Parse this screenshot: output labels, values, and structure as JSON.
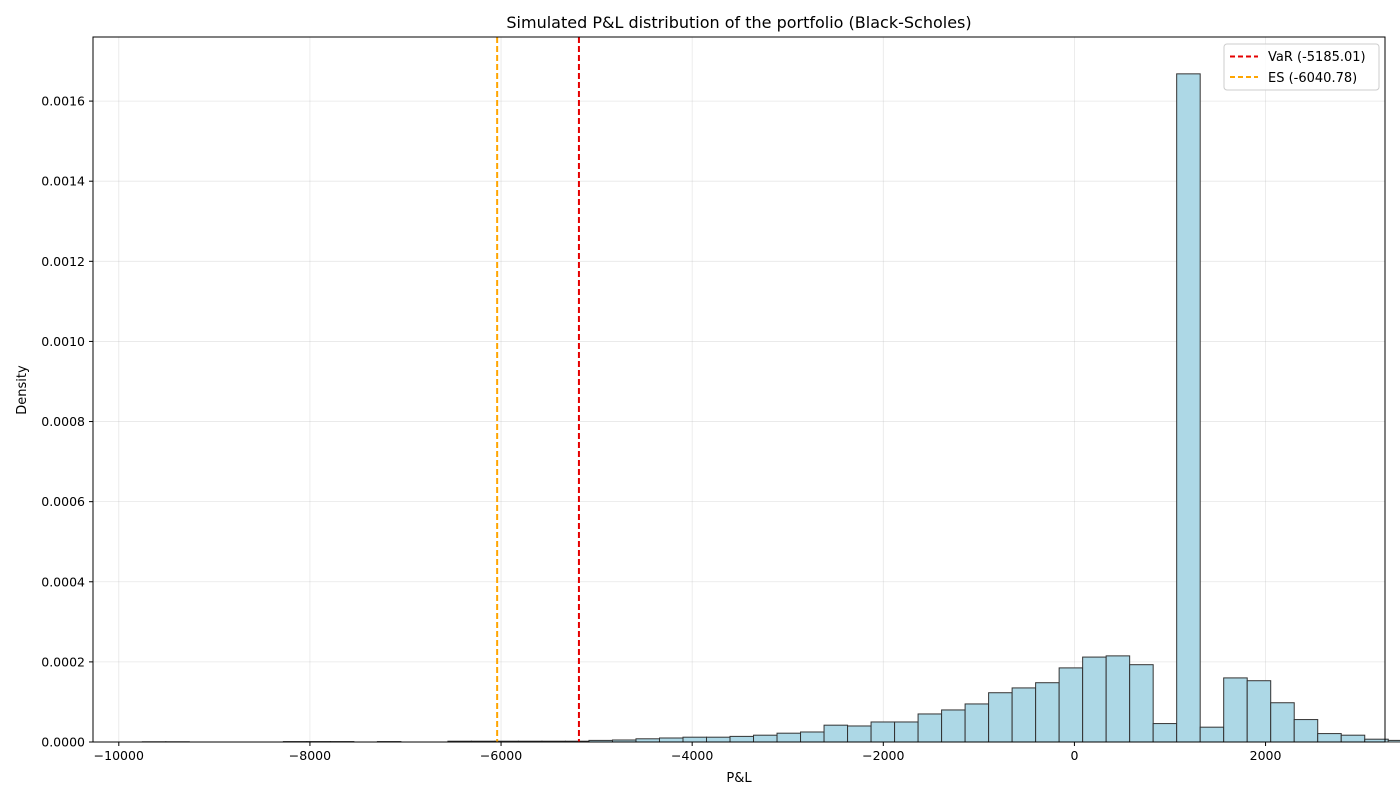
{
  "chart_data": {
    "type": "bar",
    "title": "Simulated P&L distribution of the portfolio (Black-Scholes)",
    "xlabel": "P&L",
    "ylabel": "Density",
    "xlim": [
      -10270,
      3250
    ],
    "ylim": [
      0,
      0.00176
    ],
    "x_ticks": [
      -10000,
      -8000,
      -6000,
      -4000,
      -2000,
      0,
      2000
    ],
    "x_tick_labels": [
      "−10000",
      "−8000",
      "−6000",
      "−4000",
      "−2000",
      "0",
      "2000"
    ],
    "y_ticks": [
      0,
      0.0002,
      0.0004,
      0.0006,
      0.0008,
      0.001,
      0.0012,
      0.0014,
      0.0016
    ],
    "y_tick_labels": [
      "0.0000",
      "0.0002",
      "0.0004",
      "0.0006",
      "0.0008",
      "0.0010",
      "0.0012",
      "0.0014",
      "0.0016"
    ],
    "grid": true,
    "legend_position": "top-right",
    "bar_fill": "#add8e6",
    "bar_edge": "#333333",
    "bins": {
      "edges_start": -10000,
      "bin_width": 246,
      "densities": [
        0,
        5e-07,
        5e-07,
        0,
        0,
        0,
        0,
        1e-06,
        1e-06,
        1e-06,
        0,
        1e-06,
        0,
        0,
        2e-06,
        2e-06,
        2e-06,
        2e-06,
        2e-06,
        2e-06,
        4e-06,
        5e-06,
        8e-06,
        1e-05,
        1.2e-05,
        1.2e-05,
        1.4e-05,
        1.7e-05,
        2.2e-05,
        2.5e-05,
        4.2e-05,
        4e-05,
        5e-05,
        5e-05,
        7e-05,
        8e-05,
        9.5e-05,
        0.000123,
        0.000135,
        0.000148,
        0.000185,
        0.000212,
        0.000215,
        0.000193,
        4.6e-05,
        0.001668,
        3.7e-05,
        0.00016,
        0.000153,
        9.8e-05,
        5.6e-05,
        2.1e-05,
        1.7e-05,
        7e-06,
        4e-06,
        1e-06
      ]
    },
    "vlines": [
      {
        "name": "VaR (-5185.01)",
        "x": -5185.01,
        "color": "#e50000"
      },
      {
        "name": "ES (-6040.78)",
        "x": -6040.78,
        "color": "#ffa500"
      }
    ]
  }
}
